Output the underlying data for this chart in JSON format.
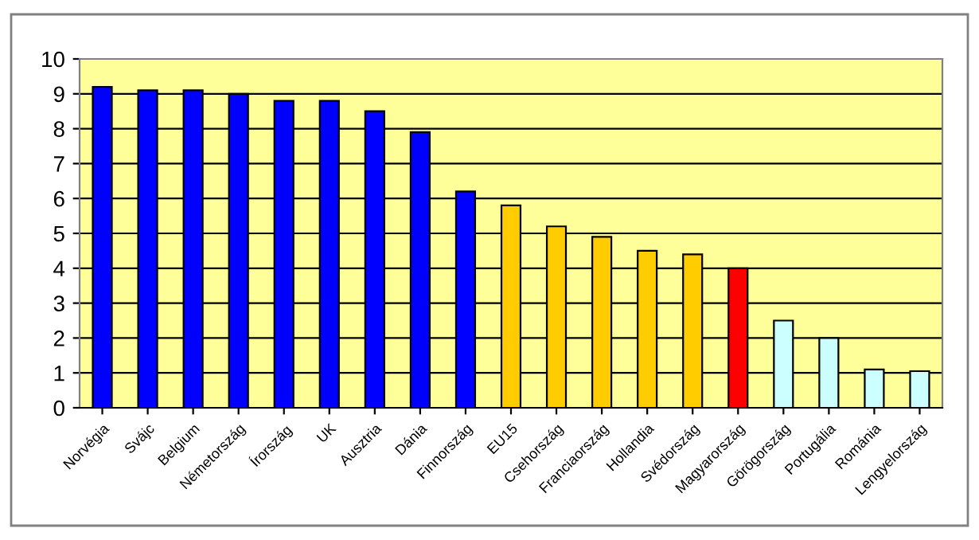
{
  "chart_data": {
    "type": "bar",
    "categories": [
      "Norvégia",
      "Svájc",
      "Belgium",
      "Németország",
      "Írország",
      "UK",
      "Ausztria",
      "Dánia",
      "Finnország",
      "EU15",
      "Csehország",
      "Franciaország",
      "Hollandia",
      "Svédország",
      "Magyarország",
      "Görögország",
      "Portugália",
      "Románia",
      "Lengyelország"
    ],
    "values": [
      9.2,
      9.1,
      9.1,
      9.0,
      8.8,
      8.8,
      8.5,
      7.9,
      6.2,
      5.8,
      5.2,
      4.9,
      4.5,
      4.4,
      4.0,
      2.5,
      2.0,
      1.1,
      1.05
    ],
    "colors": [
      "#0000ff",
      "#0000ff",
      "#0000ff",
      "#0000ff",
      "#0000ff",
      "#0000ff",
      "#0000ff",
      "#0000ff",
      "#0000ff",
      "#ffcc00",
      "#ffcc00",
      "#ffcc00",
      "#ffcc00",
      "#ffcc00",
      "#ff0000",
      "#ccffff",
      "#ccffff",
      "#ccffff",
      "#ccffff"
    ],
    "ylim": [
      0,
      10
    ],
    "yticks": [
      0,
      1,
      2,
      3,
      4,
      5,
      6,
      7,
      8,
      9,
      10
    ],
    "grid": "y",
    "legend": false
  }
}
